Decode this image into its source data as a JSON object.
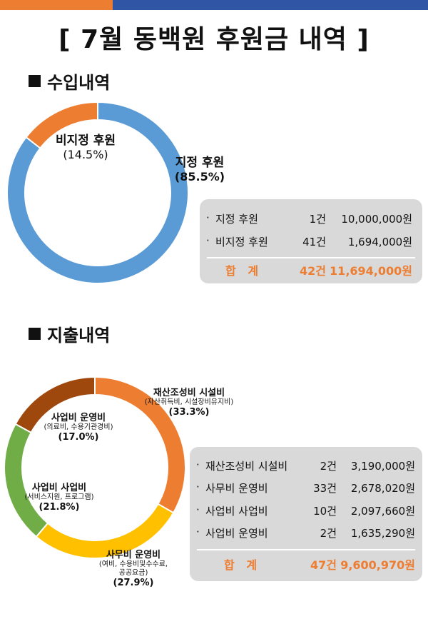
{
  "header": {
    "title": "[ 7월 동백원 후원금 내역 ]",
    "colors": {
      "left_bar": "#ED7D31",
      "right_bar": "#2F55A4"
    }
  },
  "income": {
    "heading": "수입내역",
    "rows": [
      {
        "bullet": "·",
        "name": "지정 후원",
        "count": "1건",
        "amount": "10,000,000원"
      },
      {
        "bullet": "·",
        "name": "비지정 후원",
        "count": "41건",
        "amount": "1,694,000원"
      }
    ],
    "total": {
      "label": "합   계",
      "count": "42건",
      "amount": "11,694,000원"
    }
  },
  "expense": {
    "heading": "지출내역",
    "rows": [
      {
        "bullet": "·",
        "name": "재산조성비 시설비",
        "count": "2건",
        "amount": "3,190,000원"
      },
      {
        "bullet": "·",
        "name": "사무비 운영비",
        "count": "33건",
        "amount": "2,678,020원"
      },
      {
        "bullet": "·",
        "name": "사업비 사업비",
        "count": "10건",
        "amount": "2,097,660원"
      },
      {
        "bullet": "·",
        "name": "사업비 운영비",
        "count": "2건",
        "amount": "1,635,290원"
      }
    ],
    "total": {
      "label": "합   계",
      "count": "47건",
      "amount": "9,600,970원"
    }
  },
  "chart_data": [
    {
      "type": "pie",
      "title": "수입내역",
      "categories": [
        "지정 후원",
        "비지정 후원"
      ],
      "values": [
        85.5,
        14.5
      ],
      "labels": [
        "지정 후원",
        "비지정 후원"
      ],
      "percent_labels": [
        "(85.5%)",
        "(14.5%)"
      ],
      "colors": [
        "#5B9BD5",
        "#ED7D31"
      ]
    },
    {
      "type": "pie",
      "title": "지출내역",
      "categories": [
        "재산조성비 시설비",
        "사무비 운영비",
        "사업비 사업비",
        "사업비 운영비"
      ],
      "values": [
        33.3,
        27.9,
        21.8,
        17.0
      ],
      "labels": [
        "재산조성비 시설비",
        "사무비 운영비",
        "사업비 사업비",
        "사업비 운영비"
      ],
      "sublabels": [
        "(자산취득비, 시설장비유지비)",
        "(여비, 수용비및수수료,",
        "(서비스지원, 프로그램)",
        "(의료비, 수용기관경비)"
      ],
      "sublabels2": [
        "",
        "공공요금)",
        "",
        ""
      ],
      "percent_labels": [
        "(33.3%)",
        "(27.9%)",
        "(21.8%)",
        "(17.0%)"
      ],
      "colors": [
        "#ED7D31",
        "#FFC000",
        "#70AD47",
        "#9E480E"
      ]
    }
  ]
}
